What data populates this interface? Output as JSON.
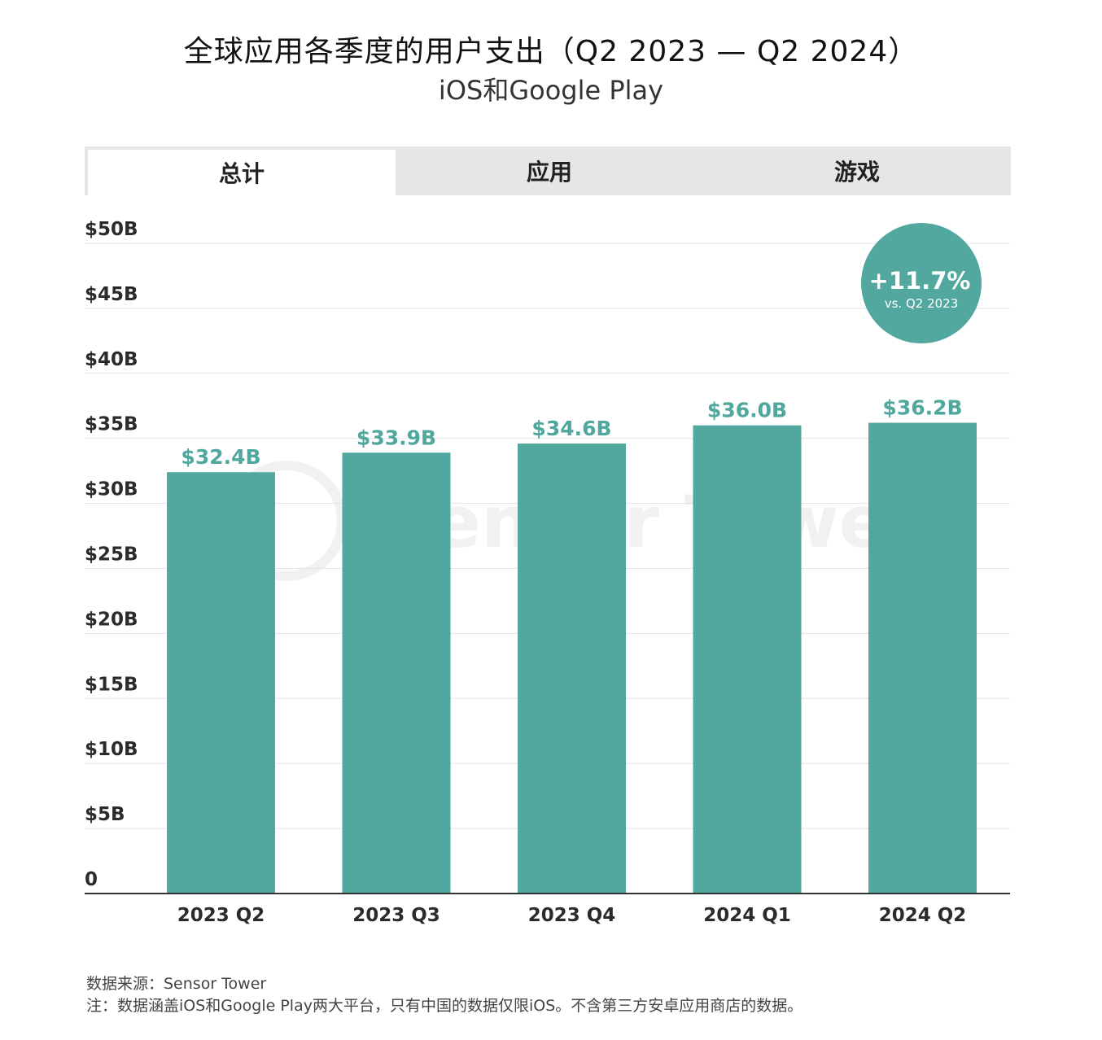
{
  "header": {
    "title": "全球应用各季度的用户支出（Q2 2023 — Q2 2024）",
    "subtitle": "iOS和Google Play"
  },
  "tabs": [
    {
      "label": "总计",
      "active": true
    },
    {
      "label": "应用",
      "active": false
    },
    {
      "label": "游戏",
      "active": false
    }
  ],
  "badge": {
    "value": "+11.7%",
    "caption": "vs. Q2 2023"
  },
  "watermark": "Sensor Tower",
  "footer": {
    "source": "数据来源：Sensor Tower",
    "note": "注：数据涵盖iOS和Google Play两大平台，只有中国的数据仅限iOS。不含第三方安卓应用商店的数据。"
  },
  "colors": {
    "bar": "#52a89f",
    "label": "#4fa79d",
    "badge": "#52a89f",
    "grid": "#e3e3e3",
    "axis": "#333333"
  },
  "chart_data": {
    "type": "bar",
    "title": "全球应用各季度的用户支出（Q2 2023 — Q2 2024）",
    "subtitle": "iOS和Google Play",
    "xlabel": "",
    "ylabel": "",
    "categories": [
      "2023 Q2",
      "2023 Q3",
      "2023 Q4",
      "2024 Q1",
      "2024 Q2"
    ],
    "values": [
      32.4,
      33.9,
      34.6,
      36.0,
      36.2
    ],
    "value_labels": [
      "$32.4B",
      "$33.9B",
      "$34.6B",
      "$36.0B",
      "$36.2B"
    ],
    "ylim": [
      0,
      50
    ],
    "yticks": [
      0,
      5,
      10,
      15,
      20,
      25,
      30,
      35,
      40,
      45,
      50
    ],
    "ytick_labels": [
      "0",
      "$5B",
      "$10B",
      "$15B",
      "$20B",
      "$25B",
      "$30B",
      "$35B",
      "$40B",
      "$45B",
      "$50B"
    ],
    "grid": true
  }
}
